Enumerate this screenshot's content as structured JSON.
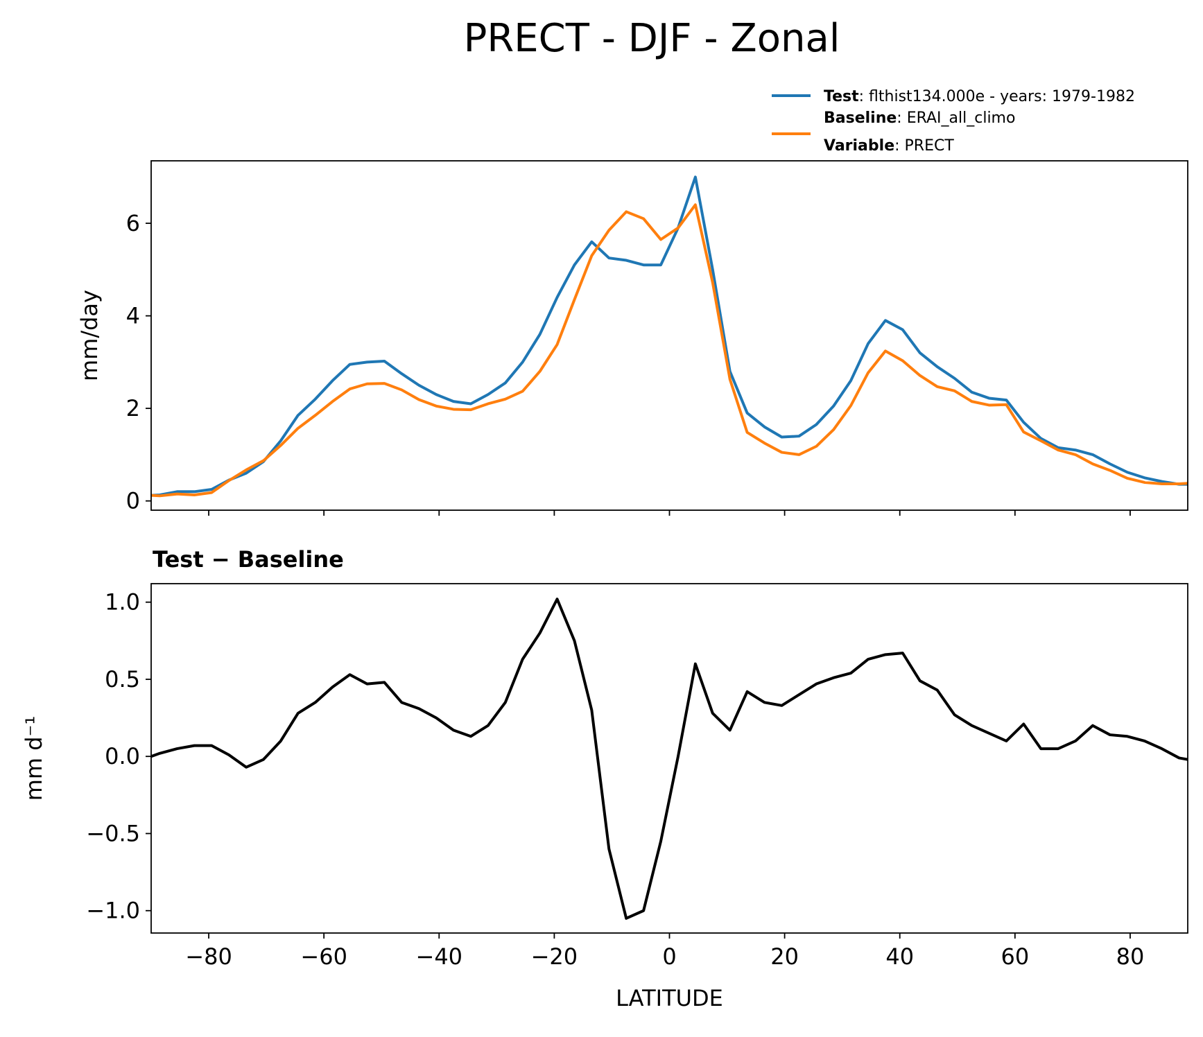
{
  "title": "PRECT - DJF - Zonal",
  "chart_data": [
    {
      "type": "line",
      "ylabel": "mm/day",
      "x": [
        -90,
        -88.5,
        -85.5,
        -82.5,
        -79.5,
        -76.5,
        -73.5,
        -70.5,
        -67.5,
        -64.5,
        -61.5,
        -58.5,
        -55.5,
        -52.5,
        -49.5,
        -46.5,
        -43.5,
        -40.5,
        -37.5,
        -34.5,
        -31.5,
        -28.5,
        -25.5,
        -22.5,
        -19.5,
        -16.5,
        -13.5,
        -10.5,
        -7.5,
        -4.5,
        -1.5,
        1.5,
        4.5,
        7.5,
        10.5,
        13.5,
        16.5,
        19.5,
        22.5,
        25.5,
        28.5,
        31.5,
        34.5,
        37.5,
        40.5,
        43.5,
        46.5,
        49.5,
        52.5,
        55.5,
        58.5,
        61.5,
        64.5,
        67.5,
        70.5,
        73.5,
        76.5,
        79.5,
        82.5,
        85.5,
        88.5,
        90
      ],
      "series": [
        {
          "name": "Test",
          "description": ": flthist134.000e - years: 1979-1982",
          "color": "#1f77b4",
          "values": [
            0.12,
            0.13,
            0.2,
            0.2,
            0.25,
            0.45,
            0.6,
            0.85,
            1.3,
            1.85,
            2.2,
            2.6,
            2.95,
            3.0,
            3.02,
            2.75,
            2.5,
            2.3,
            2.15,
            2.1,
            2.3,
            2.55,
            3.0,
            3.6,
            4.4,
            5.1,
            5.6,
            5.25,
            5.2,
            5.1,
            5.1,
            5.9,
            7.0,
            5.0,
            2.8,
            1.9,
            1.6,
            1.38,
            1.4,
            1.65,
            2.05,
            2.6,
            3.4,
            3.9,
            3.7,
            3.2,
            2.9,
            2.65,
            2.35,
            2.22,
            2.18,
            1.7,
            1.35,
            1.15,
            1.1,
            1.0,
            0.8,
            0.62,
            0.5,
            0.42,
            0.36,
            0.36
          ]
        },
        {
          "name": "Baseline",
          "description": ": ERAI_all_climo",
          "color": "#ff7f0e",
          "values": [
            0.12,
            0.11,
            0.15,
            0.13,
            0.18,
            0.44,
            0.67,
            0.87,
            1.2,
            1.57,
            1.85,
            2.15,
            2.42,
            2.53,
            2.54,
            2.4,
            2.19,
            2.05,
            1.98,
            1.97,
            2.1,
            2.2,
            2.37,
            2.8,
            3.38,
            4.35,
            5.3,
            5.85,
            6.25,
            6.1,
            5.65,
            5.9,
            6.4,
            4.72,
            2.63,
            1.48,
            1.25,
            1.05,
            1.0,
            1.18,
            1.54,
            2.06,
            2.77,
            3.24,
            3.03,
            2.71,
            2.47,
            2.38,
            2.15,
            2.07,
            2.08,
            1.49,
            1.3,
            1.1,
            1.0,
            0.8,
            0.66,
            0.49,
            0.4,
            0.37,
            0.37,
            0.38
          ]
        }
      ],
      "legend_note": {
        "name": "Variable",
        "description": ": PRECT"
      },
      "legend": "upper right",
      "xlim": [
        -90,
        90
      ],
      "xticks": [
        -80,
        -60,
        -40,
        -20,
        0,
        20,
        40,
        60,
        80
      ],
      "ylim": [
        -0.2,
        7.35
      ],
      "yticks": [
        0,
        2,
        4,
        6
      ]
    },
    {
      "type": "line",
      "title": "Test − Baseline",
      "ylabel": "mm d⁻¹",
      "xlabel": "LATITUDE",
      "x": [
        -90,
        -88.5,
        -85.5,
        -82.5,
        -79.5,
        -76.5,
        -73.5,
        -70.5,
        -67.5,
        -64.5,
        -61.5,
        -58.5,
        -55.5,
        -52.5,
        -49.5,
        -46.5,
        -43.5,
        -40.5,
        -37.5,
        -34.5,
        -31.5,
        -28.5,
        -25.5,
        -22.5,
        -19.5,
        -16.5,
        -13.5,
        -10.5,
        -7.5,
        -4.5,
        -1.5,
        1.5,
        4.5,
        7.5,
        10.5,
        13.5,
        16.5,
        19.5,
        22.5,
        25.5,
        28.5,
        31.5,
        34.5,
        37.5,
        40.5,
        43.5,
        46.5,
        49.5,
        52.5,
        55.5,
        58.5,
        61.5,
        64.5,
        67.5,
        70.5,
        73.5,
        76.5,
        79.5,
        82.5,
        85.5,
        88.5,
        90
      ],
      "series": [
        {
          "color": "#000000",
          "values": [
            0.0,
            0.02,
            0.05,
            0.07,
            0.07,
            0.01,
            -0.07,
            -0.02,
            0.1,
            0.28,
            0.35,
            0.45,
            0.53,
            0.47,
            0.48,
            0.35,
            0.31,
            0.25,
            0.17,
            0.13,
            0.2,
            0.35,
            0.63,
            0.8,
            1.02,
            0.75,
            0.3,
            -0.6,
            -1.05,
            -1.0,
            -0.55,
            0.0,
            0.6,
            0.28,
            0.17,
            0.42,
            0.35,
            0.33,
            0.4,
            0.47,
            0.51,
            0.54,
            0.63,
            0.66,
            0.67,
            0.49,
            0.43,
            0.27,
            0.2,
            0.15,
            0.1,
            0.21,
            0.05,
            0.05,
            0.1,
            0.2,
            0.14,
            0.13,
            0.1,
            0.05,
            -0.01,
            -0.02
          ]
        }
      ],
      "xlim": [
        -90,
        90
      ],
      "xticks": [
        {
          "value": -80,
          "label": "−80"
        },
        {
          "value": -60,
          "label": "−60"
        },
        {
          "value": -40,
          "label": "−40"
        },
        {
          "value": -20,
          "label": "−20"
        },
        0,
        20,
        40,
        60,
        80
      ],
      "ylim": [
        -1.145,
        1.12
      ],
      "yticks": [
        {
          "value": -1.0,
          "label": "−1.0"
        },
        {
          "value": -0.5,
          "label": "−0.5"
        },
        {
          "value": 0,
          "label": "0.0"
        },
        {
          "value": 0.5,
          "label": "0.5"
        },
        {
          "value": 1.0,
          "label": "1.0"
        }
      ]
    }
  ]
}
